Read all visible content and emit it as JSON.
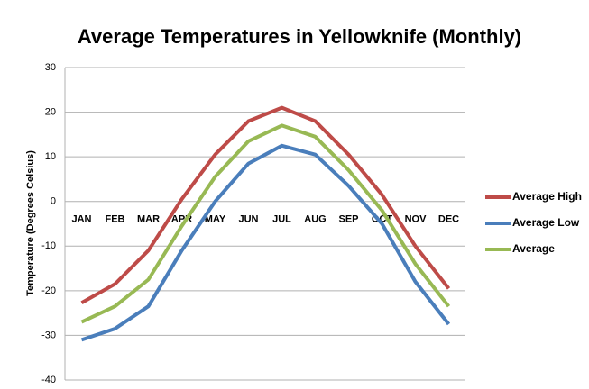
{
  "chart_data": {
    "type": "line",
    "title": "Average Temperatures in Yellowknife (Monthly)",
    "y_label": "Temperature (Degrees Celsius)",
    "categories": [
      "JAN",
      "FEB",
      "MAR",
      "APR",
      "MAY",
      "JUN",
      "JUL",
      "AUG",
      "SEP",
      "OCT",
      "NOV",
      "DEC"
    ],
    "series": [
      {
        "name": "Average High",
        "color": "#be4b48",
        "values": [
          -22.7,
          -18.5,
          -11,
          0.5,
          10.5,
          18,
          21,
          18,
          10.5,
          1.5,
          -10,
          -19.5
        ]
      },
      {
        "name": "Average Low",
        "color": "#4a7ebb",
        "values": [
          -31,
          -28.5,
          -23.5,
          -11,
          0,
          8.5,
          12.5,
          10.5,
          3.5,
          -5,
          -18,
          -27.5
        ]
      },
      {
        "name": "Average",
        "color": "#98b954",
        "values": [
          -27,
          -23.5,
          -17.5,
          -5.5,
          5.5,
          13.5,
          17,
          14.5,
          7,
          -2,
          -14,
          -23.5
        ]
      }
    ],
    "ylim": [
      -40,
      30
    ],
    "yticks": [
      -40,
      -30,
      -20,
      -10,
      0,
      10,
      20,
      30
    ],
    "grid": true,
    "legend": "right"
  }
}
